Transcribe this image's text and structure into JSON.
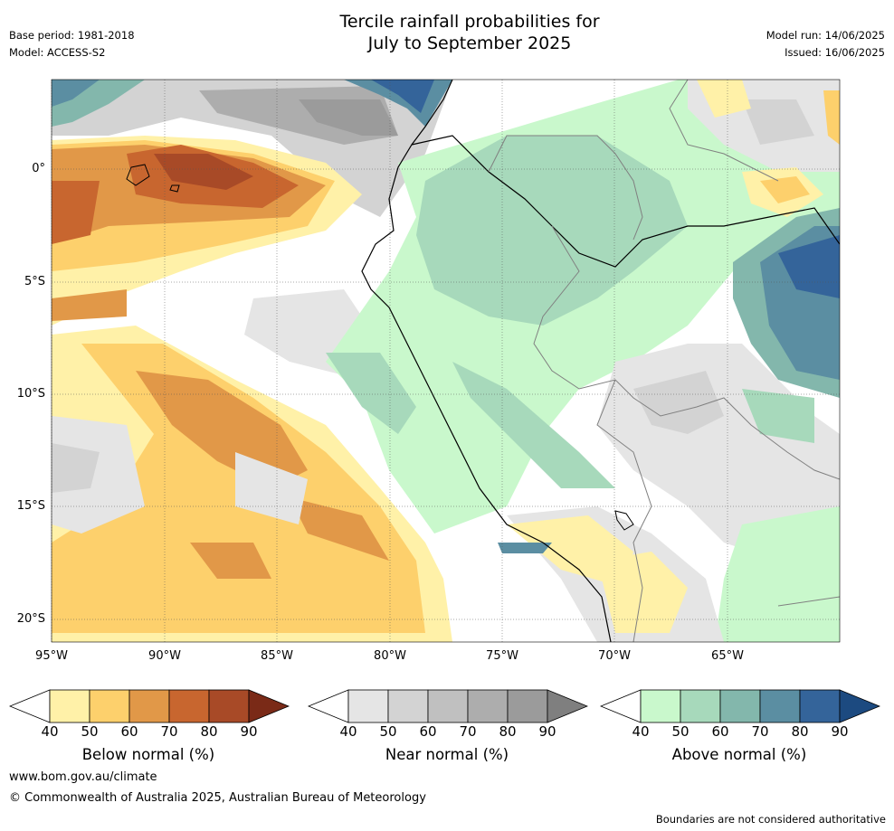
{
  "header": {
    "title_line1": "Tercile rainfall probabilities for",
    "title_line2": "July to September 2025",
    "base_period": "Base period: 1981-2018",
    "model": "Model: ACCESS-S2",
    "model_run": "Model run: 14/06/2025",
    "issued": "Issued: 16/06/2025"
  },
  "map": {
    "lat_labels": [
      "0°",
      "5°S",
      "10°S",
      "15°S",
      "20°S"
    ],
    "lon_labels": [
      "95°W",
      "90°W",
      "85°W",
      "80°W",
      "75°W",
      "70°W",
      "65°W"
    ],
    "regions": {
      "below_normal": "warm coloured areas",
      "near_normal": "grey areas",
      "above_normal": "green-blue areas"
    }
  },
  "colorbars": [
    {
      "label": "Below normal (%)",
      "ticks": [
        "40",
        "50",
        "60",
        "70",
        "80",
        "90"
      ],
      "colors": [
        "#ffffff",
        "#fff1a8",
        "#fdd06c",
        "#e19848",
        "#c8662f",
        "#a84a27",
        "#7a2a17"
      ]
    },
    {
      "label": "Near normal (%)",
      "ticks": [
        "40",
        "50",
        "60",
        "70",
        "80",
        "90"
      ],
      "colors": [
        "#ffffff",
        "#e5e5e5",
        "#d3d3d3",
        "#c0c0c0",
        "#adadad",
        "#9b9b9b",
        "#7f7f7f"
      ]
    },
    {
      "label": "Above normal (%)",
      "ticks": [
        "40",
        "50",
        "60",
        "70",
        "80",
        "90"
      ],
      "colors": [
        "#ffffff",
        "#c9f8cc",
        "#a7d9bb",
        "#83b7ac",
        "#5b8ea2",
        "#34649a",
        "#1c4a80"
      ]
    }
  ],
  "footer": {
    "website": "www.bom.gov.au/climate",
    "copyright": "© Commonwealth of Australia 2025, Australian Bureau of Meteorology",
    "disclaimer": "Boundaries are not considered authoritative"
  }
}
